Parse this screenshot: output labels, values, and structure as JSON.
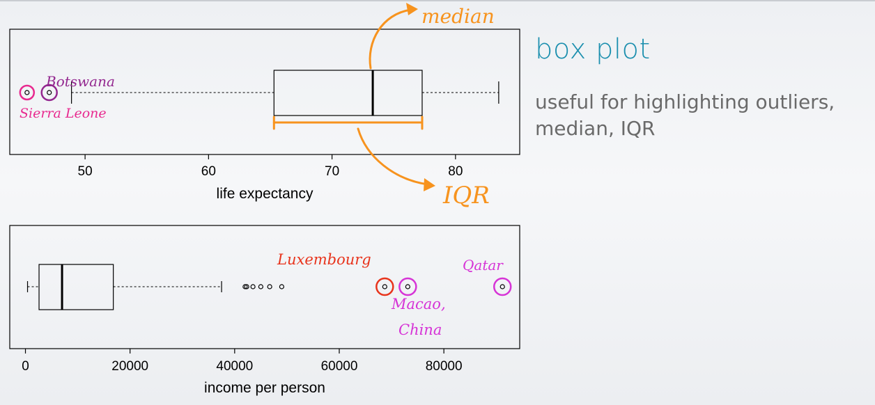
{
  "slide": {
    "title": "box plot",
    "description": "useful for highlighting outliers, median, IQR"
  },
  "colors": {
    "title": "#1b8fae",
    "annotation_orange": "#f7931e",
    "annotation_purple": "#93278f",
    "annotation_pink": "#e8298f",
    "annotation_red": "#e8341c",
    "annotation_magenta": "#d633d6"
  },
  "chart_data": [
    {
      "type": "box",
      "orientation": "horizontal",
      "xlabel": "life expectancy",
      "xlim": [
        43.9,
        85.2
      ],
      "xticks": [
        50,
        60,
        70,
        80
      ],
      "box": {
        "whisker_low": 48.9,
        "q1": 65.3,
        "median": 73.3,
        "q3": 77.3,
        "whisker_high": 83.5
      },
      "outliers": [
        45.3,
        47.1
      ],
      "annotations": {
        "outlier_labels": [
          {
            "text": "Botswana",
            "value": 47.1,
            "color": "#93278f"
          },
          {
            "text": "Sierra Leone",
            "value": 45.3,
            "color": "#e8298f"
          }
        ],
        "callouts": [
          {
            "text": "median",
            "points_to": "median",
            "color": "#f7931e"
          },
          {
            "text": "IQR",
            "points_to": "iqr",
            "color": "#f7931e"
          }
        ]
      }
    },
    {
      "type": "box",
      "orientation": "horizontal",
      "xlabel": "income per person",
      "xlim": [
        -3000,
        94500
      ],
      "xticks": [
        0,
        20000,
        40000,
        60000,
        80000
      ],
      "box": {
        "whisker_low": 400,
        "q1": 2600,
        "median": 7000,
        "q3": 16800,
        "whisker_high": 37500
      },
      "outliers": [
        42000,
        42300,
        43500,
        45000,
        46700,
        49000,
        68700,
        73100,
        91200
      ],
      "annotations": {
        "outlier_labels": [
          {
            "text": "Luxembourg",
            "value": 68700,
            "color": "#e8341c"
          },
          {
            "text": "Macao,",
            "value": 73100,
            "color": "#d633d6"
          },
          {
            "text": "China",
            "value": 73100,
            "color": "#d633d6"
          },
          {
            "text": "Qatar",
            "value": 91200,
            "color": "#d633d6"
          }
        ]
      }
    }
  ]
}
